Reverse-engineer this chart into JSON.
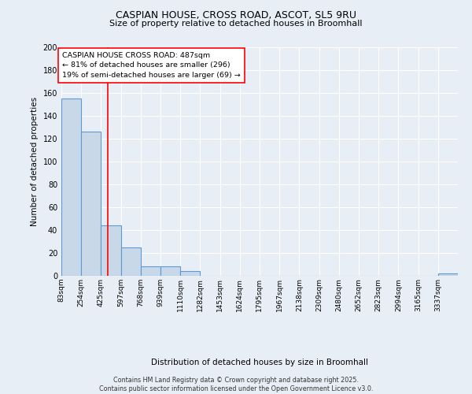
{
  "title1": "CASPIAN HOUSE, CROSS ROAD, ASCOT, SL5 9RU",
  "title2": "Size of property relative to detached houses in Broomhall",
  "xlabel": "Distribution of detached houses by size in Broomhall",
  "ylabel": "Number of detached properties",
  "bar_color": "#c8d8e8",
  "bar_edge_color": "#5b9bd5",
  "bins": [
    83,
    254,
    425,
    597,
    768,
    939,
    1110,
    1282,
    1453,
    1624,
    1795,
    1967,
    2138,
    2309,
    2480,
    2652,
    2823,
    2994,
    3165,
    3337,
    3508
  ],
  "counts": [
    155,
    126,
    44,
    25,
    8,
    8,
    4,
    0,
    0,
    0,
    0,
    0,
    0,
    0,
    0,
    0,
    0,
    0,
    0,
    2
  ],
  "red_line_x": 487,
  "annotation_text": "CASPIAN HOUSE CROSS ROAD: 487sqm\n← 81% of detached houses are smaller (296)\n19% of semi-detached houses are larger (69) →",
  "ylim": [
    0,
    200
  ],
  "yticks": [
    0,
    20,
    40,
    60,
    80,
    100,
    120,
    140,
    160,
    180,
    200
  ],
  "background_color": "#e8eef5",
  "grid_color": "#ffffff",
  "footer1": "Contains HM Land Registry data © Crown copyright and database right 2025.",
  "footer2": "Contains public sector information licensed under the Open Government Licence v3.0."
}
